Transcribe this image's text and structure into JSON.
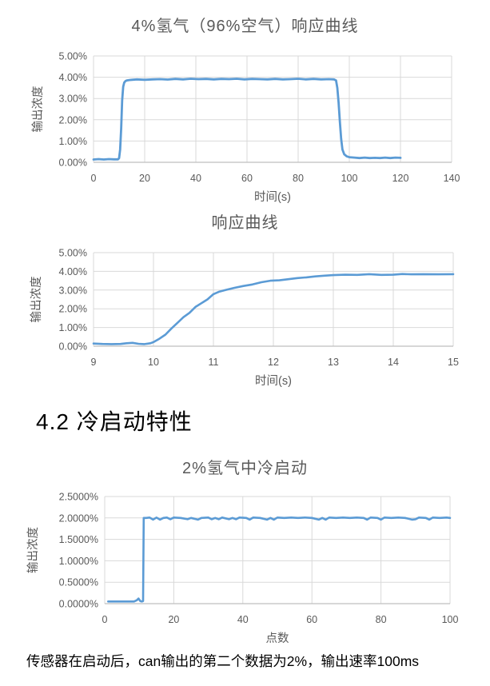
{
  "document": {
    "section_heading": "4.2 冷启动特性",
    "body_text": "传感器在启动后，can输出的第二个数据为2%，输出速率100ms"
  },
  "colors": {
    "line": "#5B9BD5",
    "gridline": "#D9D9D9",
    "axis_line": "#BFBFBF",
    "tick_text": "#595959",
    "title_text": "#595959",
    "body_text": "#000000"
  },
  "chart_data": [
    {
      "type": "line",
      "title": "4%氢气（96%空气）响应曲线",
      "xlabel": "时间(s)",
      "ylabel": "输出浓度",
      "xlim": [
        0,
        140
      ],
      "ylim": [
        0,
        5
      ],
      "grid": true,
      "legend": "none",
      "x_ticks": [
        {
          "v": 0,
          "label": "0"
        },
        {
          "v": 20,
          "label": "20"
        },
        {
          "v": 40,
          "label": "40"
        },
        {
          "v": 60,
          "label": "60"
        },
        {
          "v": 80,
          "label": "80"
        },
        {
          "v": 100,
          "label": "100"
        },
        {
          "v": 120,
          "label": "120"
        },
        {
          "v": 140,
          "label": "140"
        }
      ],
      "y_ticks": [
        {
          "v": 0,
          "label": "0.00%"
        },
        {
          "v": 1,
          "label": "1.00%"
        },
        {
          "v": 2,
          "label": "2.00%"
        },
        {
          "v": 3,
          "label": "3.00%"
        },
        {
          "v": 4,
          "label": "4.00%"
        },
        {
          "v": 5,
          "label": "5.00%"
        }
      ],
      "series": [
        {
          "name": "response-4pct-hydrogen",
          "points": [
            [
              0,
              0.13
            ],
            [
              2,
              0.15
            ],
            [
              4,
              0.13
            ],
            [
              6,
              0.15
            ],
            [
              8,
              0.14
            ],
            [
              9.6,
              0.14
            ],
            [
              10,
              0.2
            ],
            [
              10.4,
              0.6
            ],
            [
              10.8,
              1.6
            ],
            [
              11.2,
              2.9
            ],
            [
              11.6,
              3.55
            ],
            [
              12,
              3.75
            ],
            [
              12.5,
              3.82
            ],
            [
              13,
              3.85
            ],
            [
              14,
              3.87
            ],
            [
              15,
              3.88
            ],
            [
              17,
              3.9
            ],
            [
              20,
              3.88
            ],
            [
              23,
              3.9
            ],
            [
              26,
              3.91
            ],
            [
              29,
              3.89
            ],
            [
              32,
              3.92
            ],
            [
              35,
              3.9
            ],
            [
              38,
              3.93
            ],
            [
              41,
              3.91
            ],
            [
              44,
              3.92
            ],
            [
              47,
              3.9
            ],
            [
              50,
              3.92
            ],
            [
              53,
              3.91
            ],
            [
              56,
              3.93
            ],
            [
              59,
              3.9
            ],
            [
              62,
              3.92
            ],
            [
              65,
              3.91
            ],
            [
              68,
              3.9
            ],
            [
              71,
              3.92
            ],
            [
              74,
              3.9
            ],
            [
              77,
              3.91
            ],
            [
              80,
              3.93
            ],
            [
              83,
              3.9
            ],
            [
              86,
              3.92
            ],
            [
              89,
              3.9
            ],
            [
              92,
              3.91
            ],
            [
              94,
              3.9
            ],
            [
              94.8,
              3.85
            ],
            [
              95.3,
              3.5
            ],
            [
              95.8,
              2.8
            ],
            [
              96.3,
              1.9
            ],
            [
              96.8,
              1.1
            ],
            [
              97.3,
              0.6
            ],
            [
              98,
              0.38
            ],
            [
              99,
              0.28
            ],
            [
              100,
              0.24
            ],
            [
              102,
              0.22
            ],
            [
              104,
              0.2
            ],
            [
              106,
              0.22
            ],
            [
              108,
              0.2
            ],
            [
              110,
              0.21
            ],
            [
              112,
              0.2
            ],
            [
              114,
              0.22
            ],
            [
              116,
              0.2
            ],
            [
              118,
              0.22
            ],
            [
              120,
              0.21
            ]
          ]
        }
      ]
    },
    {
      "type": "line",
      "title": "响应曲线",
      "xlabel": "时间(s)",
      "ylabel": "输出浓度",
      "xlim": [
        9,
        15
      ],
      "ylim": [
        0,
        5
      ],
      "grid": true,
      "legend": "none",
      "x_ticks": [
        {
          "v": 9,
          "label": "9"
        },
        {
          "v": 10,
          "label": "10"
        },
        {
          "v": 11,
          "label": "11"
        },
        {
          "v": 12,
          "label": "12"
        },
        {
          "v": 13,
          "label": "13"
        },
        {
          "v": 14,
          "label": "14"
        },
        {
          "v": 15,
          "label": "15"
        }
      ],
      "y_ticks": [
        {
          "v": 0,
          "label": "0.00%"
        },
        {
          "v": 1,
          "label": "1.00%"
        },
        {
          "v": 2,
          "label": "2.00%"
        },
        {
          "v": 3,
          "label": "3.00%"
        },
        {
          "v": 4,
          "label": "4.00%"
        },
        {
          "v": 5,
          "label": "5.00%"
        }
      ],
      "series": [
        {
          "name": "response-rise-detail",
          "points": [
            [
              9,
              0.14
            ],
            [
              9.15,
              0.12
            ],
            [
              9.3,
              0.11
            ],
            [
              9.45,
              0.12
            ],
            [
              9.55,
              0.16
            ],
            [
              9.65,
              0.18
            ],
            [
              9.75,
              0.13
            ],
            [
              9.85,
              0.11
            ],
            [
              9.95,
              0.16
            ],
            [
              10,
              0.22
            ],
            [
              10.1,
              0.4
            ],
            [
              10.2,
              0.62
            ],
            [
              10.3,
              0.95
            ],
            [
              10.4,
              1.25
            ],
            [
              10.5,
              1.55
            ],
            [
              10.6,
              1.78
            ],
            [
              10.7,
              2.1
            ],
            [
              10.8,
              2.3
            ],
            [
              10.9,
              2.5
            ],
            [
              11,
              2.78
            ],
            [
              11.1,
              2.92
            ],
            [
              11.2,
              3.0
            ],
            [
              11.35,
              3.12
            ],
            [
              11.5,
              3.22
            ],
            [
              11.65,
              3.3
            ],
            [
              11.8,
              3.42
            ],
            [
              11.95,
              3.5
            ],
            [
              12.1,
              3.52
            ],
            [
              12.25,
              3.58
            ],
            [
              12.4,
              3.64
            ],
            [
              12.55,
              3.68
            ],
            [
              12.7,
              3.73
            ],
            [
              12.85,
              3.77
            ],
            [
              13,
              3.8
            ],
            [
              13.2,
              3.82
            ],
            [
              13.4,
              3.81
            ],
            [
              13.6,
              3.85
            ],
            [
              13.8,
              3.81
            ],
            [
              14,
              3.82
            ],
            [
              14.15,
              3.86
            ],
            [
              14.3,
              3.84
            ],
            [
              14.5,
              3.85
            ],
            [
              14.75,
              3.84
            ],
            [
              15,
              3.85
            ]
          ]
        }
      ]
    },
    {
      "type": "line",
      "title": "2%氢气中冷启动",
      "xlabel": "点数",
      "ylabel": "输出浓度",
      "xlim": [
        0,
        100
      ],
      "ylim": [
        0,
        2.5
      ],
      "grid": true,
      "legend": "none",
      "x_ticks": [
        {
          "v": 0,
          "label": "0"
        },
        {
          "v": 20,
          "label": "20"
        },
        {
          "v": 40,
          "label": "40"
        },
        {
          "v": 60,
          "label": "60"
        },
        {
          "v": 80,
          "label": "80"
        },
        {
          "v": 100,
          "label": "100"
        }
      ],
      "y_ticks": [
        {
          "v": 0,
          "label": "0.0000%"
        },
        {
          "v": 0.5,
          "label": "0.5000%"
        },
        {
          "v": 1,
          "label": "1.0000%"
        },
        {
          "v": 1.5,
          "label": "1.5000%"
        },
        {
          "v": 2,
          "label": "2.0000%"
        },
        {
          "v": 2.5,
          "label": "2.5000%"
        }
      ],
      "series": [
        {
          "name": "cold-start-2pct",
          "points": [
            [
              1,
              0.05
            ],
            [
              3,
              0.05
            ],
            [
              5,
              0.05
            ],
            [
              7,
              0.05
            ],
            [
              8.5,
              0.05
            ],
            [
              9.3,
              0.08
            ],
            [
              9.8,
              0.12
            ],
            [
              10.3,
              0.06
            ],
            [
              10.8,
              0.05
            ],
            [
              11.1,
              0.06
            ],
            [
              11.3,
              2.0
            ],
            [
              12,
              2.0
            ],
            [
              13,
              2.01
            ],
            [
              14,
              1.96
            ],
            [
              15,
              2.01
            ],
            [
              16,
              1.96
            ],
            [
              17,
              2.0
            ],
            [
              18,
              2.01
            ],
            [
              19,
              1.97
            ],
            [
              20,
              2.01
            ],
            [
              22,
              2.0
            ],
            [
              24,
              1.97
            ],
            [
              25,
              2.0
            ],
            [
              27,
              1.96
            ],
            [
              28,
              2.0
            ],
            [
              30,
              2.01
            ],
            [
              31,
              1.97
            ],
            [
              32,
              2.0
            ],
            [
              33,
              1.97
            ],
            [
              34,
              2.01
            ],
            [
              36,
              1.97
            ],
            [
              37,
              2.0
            ],
            [
              38,
              1.97
            ],
            [
              39,
              2.01
            ],
            [
              41,
              2.0
            ],
            [
              42,
              1.96
            ],
            [
              43,
              2.01
            ],
            [
              45,
              2.0
            ],
            [
              47,
              1.96
            ],
            [
              48,
              2.0
            ],
            [
              49,
              1.96
            ],
            [
              50,
              2.01
            ],
            [
              52,
              2.0
            ],
            [
              54,
              2.01
            ],
            [
              56,
              2.0
            ],
            [
              58,
              2.01
            ],
            [
              60,
              2.0
            ],
            [
              62,
              1.96
            ],
            [
              63,
              2.0
            ],
            [
              64,
              1.96
            ],
            [
              65,
              2.01
            ],
            [
              67,
              2.0
            ],
            [
              69,
              2.01
            ],
            [
              71,
              2.0
            ],
            [
              73,
              2.01
            ],
            [
              75,
              2.0
            ],
            [
              76,
              1.96
            ],
            [
              77,
              2.01
            ],
            [
              79,
              2.0
            ],
            [
              80,
              1.96
            ],
            [
              81,
              2.01
            ],
            [
              83,
              2.0
            ],
            [
              85,
              2.01
            ],
            [
              87,
              2.0
            ],
            [
              89,
              1.96
            ],
            [
              90,
              1.97
            ],
            [
              91,
              2.01
            ],
            [
              93,
              2.0
            ],
            [
              94,
              1.96
            ],
            [
              95,
              2.01
            ],
            [
              97,
              2.0
            ],
            [
              99,
              2.01
            ],
            [
              100,
              2.0
            ]
          ]
        }
      ]
    }
  ]
}
